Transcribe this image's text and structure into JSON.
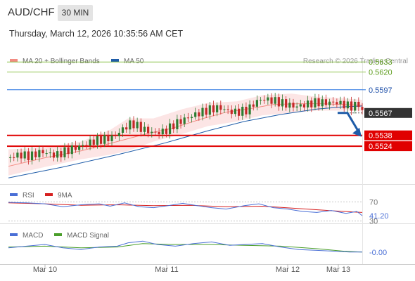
{
  "header": {
    "symbol": "AUD/CHF",
    "timeframe": "30 MIN",
    "timestamp": "Thursday, March 12, 2026 10:35:56 AM CET"
  },
  "attribution": "Research © 2026 Trading Central",
  "colors": {
    "bull": "#2e7d32",
    "bear": "#c62828",
    "ma20": "#f28b82",
    "band_fill": "#fbdcdc",
    "ma50": "#1f5ca8",
    "resistance": "#8bc34a",
    "pivot": "#1e6fe0",
    "support": "#e00000",
    "price_label": "#333333",
    "rsi": "#4a6fd6",
    "rsi_ma": "#d62020",
    "macd": "#4a6fd6",
    "macd_signal": "#4a9e2a"
  },
  "chart_data": [
    {
      "type": "candlestick",
      "x_labels": [
        "Mar 10",
        "Mar 11",
        "Mar 12",
        "Mar 13"
      ],
      "legend": [
        "MA 20 + Bollinger Bands",
        "MA 50"
      ],
      "ylim": [
        0.5475,
        0.5645
      ],
      "levels": [
        {
          "label": "0.5633",
          "value": 0.5633,
          "kind": "resistance"
        },
        {
          "label": "0.5620",
          "value": 0.562,
          "kind": "resistance"
        },
        {
          "label": "0.5597",
          "value": 0.5597,
          "kind": "pivot"
        },
        {
          "label": "0.5567",
          "value": 0.5567,
          "kind": "last"
        },
        {
          "label": "0.5538",
          "value": 0.5538,
          "kind": "support"
        },
        {
          "label": "0.5524",
          "value": 0.5524,
          "kind": "support"
        }
      ],
      "close_path": [
        [
          0,
          0.5509
        ],
        [
          6,
          0.5513
        ],
        [
          12,
          0.5511
        ],
        [
          18,
          0.5517
        ],
        [
          26,
          0.5512
        ],
        [
          34,
          0.552
        ],
        [
          40,
          0.5524
        ],
        [
          46,
          0.553
        ],
        [
          52,
          0.5533
        ],
        [
          58,
          0.5536
        ],
        [
          64,
          0.5548
        ],
        [
          68,
          0.5554
        ],
        [
          74,
          0.5546
        ],
        [
          80,
          0.5541
        ],
        [
          86,
          0.5543
        ],
        [
          92,
          0.5553
        ],
        [
          98,
          0.556
        ],
        [
          104,
          0.5566
        ],
        [
          110,
          0.5571
        ],
        [
          116,
          0.5574
        ],
        [
          122,
          0.5569
        ],
        [
          126,
          0.5568
        ],
        [
          132,
          0.5571
        ],
        [
          136,
          0.5581
        ],
        [
          140,
          0.5585
        ],
        [
          146,
          0.5583
        ],
        [
          152,
          0.5579
        ],
        [
          158,
          0.5575
        ],
        [
          164,
          0.5578
        ],
        [
          170,
          0.5581
        ],
        [
          176,
          0.558
        ],
        [
          180,
          0.5581
        ],
        [
          186,
          0.5577
        ],
        [
          190,
          0.5575
        ],
        [
          193,
          0.5579
        ],
        [
          195,
          0.5568
        ]
      ],
      "ma20_path": [
        [
          0,
          0.5498
        ],
        [
          20,
          0.5509
        ],
        [
          40,
          0.5518
        ],
        [
          60,
          0.553
        ],
        [
          76,
          0.554
        ],
        [
          90,
          0.5547
        ],
        [
          106,
          0.5559
        ],
        [
          120,
          0.5568
        ],
        [
          134,
          0.5573
        ],
        [
          146,
          0.5578
        ],
        [
          160,
          0.5579
        ],
        [
          172,
          0.5579
        ],
        [
          184,
          0.5578
        ],
        [
          195,
          0.5577
        ]
      ],
      "band_upper": [
        [
          0,
          0.552
        ],
        [
          20,
          0.5522
        ],
        [
          40,
          0.553
        ],
        [
          56,
          0.5545
        ],
        [
          66,
          0.556
        ],
        [
          80,
          0.556
        ],
        [
          96,
          0.5572
        ],
        [
          110,
          0.558
        ],
        [
          126,
          0.5582
        ],
        [
          140,
          0.559
        ],
        [
          156,
          0.5592
        ],
        [
          170,
          0.5588
        ],
        [
          184,
          0.5586
        ],
        [
          195,
          0.5584
        ]
      ],
      "band_lower": [
        [
          0,
          0.5486
        ],
        [
          20,
          0.5497
        ],
        [
          40,
          0.5507
        ],
        [
          56,
          0.5513
        ],
        [
          66,
          0.5518
        ],
        [
          80,
          0.553
        ],
        [
          96,
          0.554
        ],
        [
          110,
          0.555
        ],
        [
          126,
          0.5556
        ],
        [
          140,
          0.5564
        ],
        [
          156,
          0.5567
        ],
        [
          170,
          0.557
        ],
        [
          184,
          0.557
        ],
        [
          195,
          0.557
        ]
      ],
      "ma50_path": [
        [
          0,
          0.5483
        ],
        [
          30,
          0.5497
        ],
        [
          60,
          0.5513
        ],
        [
          86,
          0.5528
        ],
        [
          110,
          0.5544
        ],
        [
          130,
          0.5556
        ],
        [
          150,
          0.5565
        ],
        [
          170,
          0.5572
        ],
        [
          185,
          0.5575
        ],
        [
          195,
          0.5576
        ]
      ],
      "forecast": {
        "from": 0.5567,
        "to": 0.5537
      }
    },
    {
      "type": "line",
      "title": "RSI",
      "legend": [
        "RSI",
        "9MA"
      ],
      "ylim": [
        25,
        75
      ],
      "level_labels": [
        {
          "label": "70",
          "value": 70
        },
        {
          "label": "41.20",
          "value": 41.2
        },
        {
          "label": "30",
          "value": 30
        }
      ],
      "rsi_path": [
        [
          0,
          69
        ],
        [
          10,
          68
        ],
        [
          20,
          66
        ],
        [
          30,
          60
        ],
        [
          40,
          64
        ],
        [
          50,
          66
        ],
        [
          56,
          61
        ],
        [
          64,
          68
        ],
        [
          72,
          60
        ],
        [
          80,
          58
        ],
        [
          88,
          62
        ],
        [
          96,
          67
        ],
        [
          104,
          62
        ],
        [
          112,
          58
        ],
        [
          120,
          55
        ],
        [
          130,
          62
        ],
        [
          138,
          66
        ],
        [
          146,
          58
        ],
        [
          154,
          55
        ],
        [
          162,
          50
        ],
        [
          170,
          48
        ],
        [
          178,
          52
        ],
        [
          186,
          46
        ],
        [
          192,
          50
        ],
        [
          195,
          41.2
        ]
      ],
      "ma9_path": [
        [
          0,
          68
        ],
        [
          20,
          66
        ],
        [
          40,
          63
        ],
        [
          60,
          64
        ],
        [
          80,
          62
        ],
        [
          100,
          63
        ],
        [
          120,
          60
        ],
        [
          140,
          61
        ],
        [
          160,
          56
        ],
        [
          180,
          51
        ],
        [
          195,
          48
        ]
      ]
    },
    {
      "type": "line",
      "title": "MACD",
      "legend": [
        "MACD",
        "MACD Signal"
      ],
      "ylim": [
        -0.0012,
        0.0018
      ],
      "level_labels": [
        {
          "label": "-0.00",
          "value": -0.0001
        }
      ],
      "macd_path": [
        [
          0,
          0.0004
        ],
        [
          10,
          0.0006
        ],
        [
          20,
          0.0008
        ],
        [
          30,
          0.0004
        ],
        [
          40,
          0.0002
        ],
        [
          50,
          0.0005
        ],
        [
          60,
          0.0006
        ],
        [
          66,
          0.001
        ],
        [
          74,
          0.0012
        ],
        [
          82,
          0.0008
        ],
        [
          92,
          0.0006
        ],
        [
          102,
          0.0009
        ],
        [
          112,
          0.0011
        ],
        [
          122,
          0.0007
        ],
        [
          130,
          0.0008
        ],
        [
          140,
          0.0009
        ],
        [
          150,
          0.0005
        ],
        [
          160,
          0.0002
        ],
        [
          170,
          0.0001
        ],
        [
          180,
          0.0
        ],
        [
          188,
          -0.0001
        ],
        [
          195,
          -0.0001
        ]
      ],
      "signal_path": [
        [
          0,
          0.0005
        ],
        [
          20,
          0.0006
        ],
        [
          40,
          0.0004
        ],
        [
          60,
          0.0005
        ],
        [
          74,
          0.0009
        ],
        [
          90,
          0.0008
        ],
        [
          110,
          0.0008
        ],
        [
          130,
          0.0007
        ],
        [
          150,
          0.0006
        ],
        [
          170,
          0.0003
        ],
        [
          185,
          0.0
        ],
        [
          195,
          -0.0001
        ]
      ]
    }
  ]
}
